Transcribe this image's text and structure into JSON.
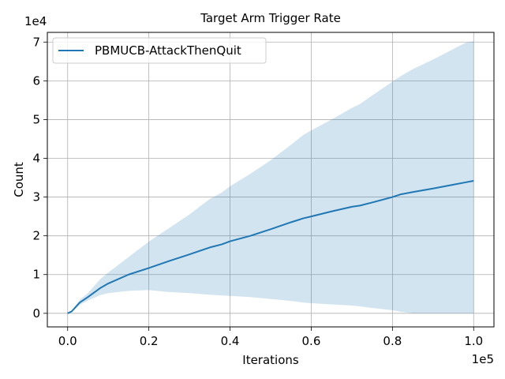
{
  "chart_data": {
    "type": "line",
    "title": "Target Arm Trigger Rate",
    "xlabel": "Iterations",
    "ylabel": "Count",
    "x_offset_label": "1e5",
    "y_offset_label": "1e4",
    "xlim": [
      -0.05,
      1.05
    ],
    "ylim": [
      -0.35,
      7.25
    ],
    "xticks": [
      0.0,
      0.2,
      0.4,
      0.6,
      0.8,
      1.0
    ],
    "xtick_labels": [
      "0.0",
      "0.2",
      "0.4",
      "0.6",
      "0.8",
      "1.0"
    ],
    "yticks": [
      0,
      1,
      2,
      3,
      4,
      5,
      6,
      7
    ],
    "ytick_labels": [
      "0",
      "1",
      "2",
      "3",
      "4",
      "5",
      "6",
      "7"
    ],
    "grid": true,
    "legend_position": "top-left",
    "series": [
      {
        "name": "PBMUCB-AttackThenQuit",
        "color": "#1f77b4",
        "band_color": "#1f77b4",
        "x": [
          0.0,
          0.01,
          0.03,
          0.05,
          0.08,
          0.1,
          0.15,
          0.2,
          0.25,
          0.3,
          0.35,
          0.38,
          0.4,
          0.45,
          0.5,
          0.55,
          0.58,
          0.6,
          0.65,
          0.7,
          0.72,
          0.75,
          0.8,
          0.82,
          0.85,
          0.9,
          0.95,
          0.98,
          1.0
        ],
        "y": [
          0.0,
          0.05,
          0.28,
          0.42,
          0.65,
          0.77,
          1.0,
          1.17,
          1.35,
          1.52,
          1.7,
          1.78,
          1.86,
          2.0,
          2.17,
          2.35,
          2.45,
          2.5,
          2.63,
          2.75,
          2.78,
          2.86,
          3.0,
          3.07,
          3.13,
          3.22,
          3.32,
          3.38,
          3.42
        ],
        "upper": [
          0.0,
          0.07,
          0.35,
          0.52,
          0.88,
          1.05,
          1.45,
          1.85,
          2.2,
          2.55,
          2.95,
          3.12,
          3.28,
          3.6,
          3.95,
          4.35,
          4.6,
          4.72,
          5.0,
          5.3,
          5.4,
          5.62,
          5.98,
          6.12,
          6.3,
          6.55,
          6.82,
          6.98,
          7.02
        ],
        "lower": [
          0.0,
          0.03,
          0.22,
          0.33,
          0.47,
          0.52,
          0.58,
          0.6,
          0.55,
          0.52,
          0.48,
          0.46,
          0.45,
          0.42,
          0.37,
          0.32,
          0.28,
          0.26,
          0.23,
          0.2,
          0.18,
          0.14,
          0.08,
          0.04,
          0.0,
          0.0,
          0.0,
          0.0,
          0.0
        ]
      }
    ]
  }
}
